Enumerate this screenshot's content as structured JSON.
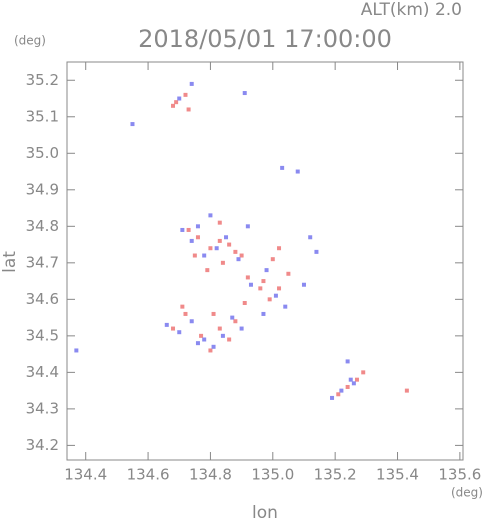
{
  "chart_data": {
    "type": "scatter",
    "title": "2018/05/01 17:00:00",
    "subtitle": "ALT(km) 2.0",
    "x_label": "lon",
    "y_label": "lat",
    "x_unit": "(deg)",
    "y_unit": "(deg)",
    "xlim": [
      134.34,
      135.61
    ],
    "ylim": [
      34.16,
      35.25
    ],
    "xticks": [
      134.4,
      134.6,
      134.8,
      {
        "value": 135,
        "label": "135.0"
      },
      135.2,
      135.4,
      135.6
    ],
    "yticks": [
      34.2,
      34.3,
      34.4,
      34.5,
      34.6,
      34.7,
      34.8,
      34.9,
      {
        "value": 35,
        "label": "35.0"
      },
      35.1,
      35.2
    ],
    "series": [
      {
        "color": "#f08a8a",
        "x": [
          134.69,
          134.72,
          134.73,
          134.68,
          134.73,
          134.76,
          134.8,
          134.83,
          134.86,
          134.88,
          134.9,
          134.84,
          134.79,
          134.92,
          135.02,
          134.97,
          134.99,
          135.02,
          135.05,
          135.0,
          134.96,
          134.68,
          134.72,
          134.77,
          134.83,
          134.88,
          134.86,
          134.81,
          134.8,
          134.71,
          134.91,
          135.21,
          135.24,
          135.27,
          135.29,
          135.43,
          134.83,
          134.75
        ],
        "values": [
          35.14,
          35.16,
          35.12,
          35.13,
          34.79,
          34.77,
          34.74,
          34.76,
          34.75,
          34.73,
          34.72,
          34.7,
          34.68,
          34.66,
          34.74,
          34.65,
          34.6,
          34.63,
          34.67,
          34.71,
          34.63,
          34.52,
          34.56,
          34.5,
          34.52,
          34.54,
          34.49,
          34.56,
          34.46,
          34.58,
          34.59,
          34.34,
          34.36,
          34.38,
          34.4,
          34.35,
          34.81,
          34.72
        ]
      },
      {
        "color": "#8a8af0",
        "x": [
          134.37,
          134.55,
          134.74,
          134.7,
          134.91,
          135.03,
          135.08,
          134.71,
          134.74,
          134.78,
          134.82,
          134.85,
          134.89,
          134.8,
          134.76,
          134.93,
          134.92,
          134.98,
          135.01,
          135.04,
          134.97,
          135.1,
          135.12,
          135.14,
          134.66,
          134.7,
          134.74,
          134.78,
          134.84,
          134.87,
          134.76,
          134.9,
          135.24,
          135.22,
          135.25,
          135.19,
          135.26,
          134.81
        ],
        "values": [
          34.46,
          35.08,
          35.19,
          35.15,
          35.165,
          34.96,
          34.95,
          34.79,
          34.76,
          34.72,
          34.74,
          34.77,
          34.71,
          34.83,
          34.8,
          34.64,
          34.8,
          34.68,
          34.61,
          34.58,
          34.56,
          34.64,
          34.77,
          34.73,
          34.53,
          34.51,
          34.54,
          34.49,
          34.5,
          34.55,
          34.48,
          34.52,
          34.43,
          34.35,
          34.38,
          34.33,
          34.37,
          34.47
        ]
      }
    ]
  }
}
